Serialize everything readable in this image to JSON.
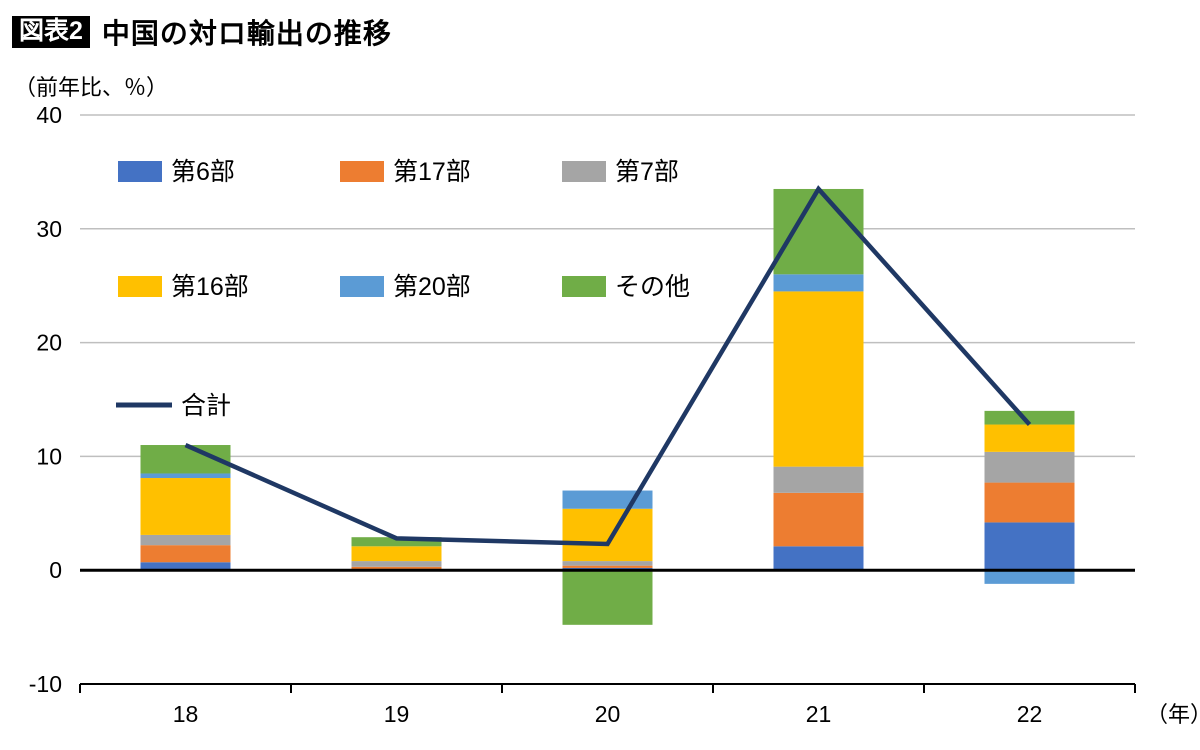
{
  "header": {
    "badge": "図表2",
    "title": "中国の対ロ輸出の推移"
  },
  "chart_data": {
    "type": "bar",
    "stacked": true,
    "title": "中国の対ロ輸出の推移",
    "unit_label": "（前年比、％）",
    "x_axis_suffix": "（年）",
    "categories": [
      "18",
      "19",
      "20",
      "21",
      "22"
    ],
    "y_ticks": [
      -10,
      0,
      10,
      20,
      30,
      40
    ],
    "ylim": [
      -10,
      40
    ],
    "grid": "horizontal",
    "legend_position": "inside-top-left",
    "series": [
      {
        "name": "第6部",
        "color": "#4472C4",
        "values": [
          0.7,
          0.1,
          0.2,
          2.1,
          4.2
        ]
      },
      {
        "name": "第17部",
        "color": "#ED7D31",
        "values": [
          1.5,
          0.2,
          0.2,
          4.7,
          3.5
        ]
      },
      {
        "name": "第7部",
        "color": "#A5A5A5",
        "values": [
          0.9,
          0.5,
          0.4,
          2.3,
          2.7
        ]
      },
      {
        "name": "第16部",
        "color": "#FFC000",
        "values": [
          5.0,
          1.3,
          4.6,
          15.4,
          2.4
        ]
      },
      {
        "name": "第20部",
        "color": "#5B9BD5",
        "values": [
          0.4,
          0.0,
          1.6,
          1.5,
          -1.2
        ]
      },
      {
        "name": "その他",
        "color": "#70AD47",
        "values": [
          2.5,
          0.8,
          -4.8,
          7.5,
          1.2
        ]
      }
    ],
    "line_series": {
      "name": "合計",
      "color": "#1F3864",
      "values": [
        11.0,
        2.8,
        2.3,
        33.5,
        12.8
      ]
    },
    "colors": {
      "gridline": "#BFBFBF",
      "zero_line": "#000000",
      "axis_line": "#000000"
    }
  }
}
